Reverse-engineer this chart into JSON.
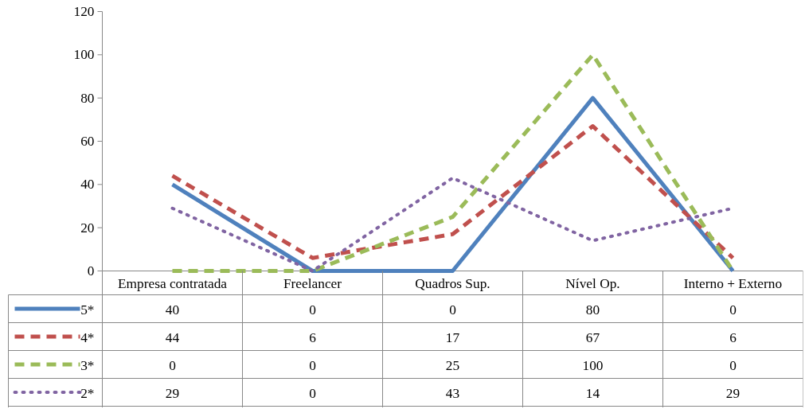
{
  "chart_data": {
    "type": "line",
    "categories": [
      "Empresa contratada",
      "Freelancer",
      "Quadros Sup.",
      "Nível Op.",
      "Interno + Externo"
    ],
    "series": [
      {
        "name": "5*",
        "color": "#4f81bd",
        "line_style": "solid",
        "values": [
          40,
          0,
          0,
          80,
          0
        ]
      },
      {
        "name": "4*",
        "color": "#c0504d",
        "line_style": "dashed",
        "values": [
          44,
          6,
          17,
          67,
          6
        ]
      },
      {
        "name": "3*",
        "color": "#9bbb59",
        "line_style": "dashed",
        "values": [
          0,
          0,
          25,
          100,
          0
        ]
      },
      {
        "name": "2*",
        "color": "#8064a2",
        "line_style": "dotted",
        "values": [
          29,
          0,
          43,
          14,
          29
        ]
      }
    ],
    "ylim": [
      0,
      120
    ],
    "yticks": [
      0,
      20,
      40,
      60,
      80,
      100,
      120
    ],
    "grid": false,
    "legend": "bottom",
    "data_labels": true,
    "marker": "none"
  }
}
